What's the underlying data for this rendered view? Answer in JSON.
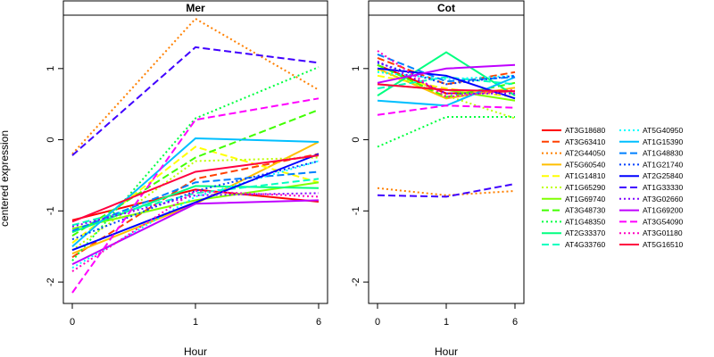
{
  "chart_data": {
    "type": "line",
    "ylabel": "centered expression",
    "x": [
      0,
      1,
      6
    ],
    "x_tick_labels": [
      "0",
      "1",
      "6"
    ],
    "ylim": [
      -2.3,
      1.75
    ],
    "y_ticks": [
      -2,
      -1,
      0,
      1
    ],
    "y_tick_labels": [
      "-2",
      "-1",
      "0",
      "1"
    ],
    "series": [
      {
        "name": "AT3G18680",
        "color": "#ff0000",
        "dash": "solid"
      },
      {
        "name": "AT3G63410",
        "color": "#ff4000",
        "dash": "dashed"
      },
      {
        "name": "AT2G44050",
        "color": "#ff8000",
        "dash": "dotted"
      },
      {
        "name": "AT5G60540",
        "color": "#ffbf00",
        "dash": "solid"
      },
      {
        "name": "AT1G14810",
        "color": "#ffff00",
        "dash": "dashed"
      },
      {
        "name": "AT1G65290",
        "color": "#bfff00",
        "dash": "dotted"
      },
      {
        "name": "AT1G69740",
        "color": "#80ff00",
        "dash": "solid"
      },
      {
        "name": "AT3G48730",
        "color": "#40ff00",
        "dash": "dashed"
      },
      {
        "name": "AT1G48350",
        "color": "#00ff40",
        "dash": "dotted"
      },
      {
        "name": "AT2G33370",
        "color": "#00ff80",
        "dash": "solid"
      },
      {
        "name": "AT4G33760",
        "color": "#00ffbf",
        "dash": "dashed"
      },
      {
        "name": "AT5G40950",
        "color": "#00ffff",
        "dash": "dotted"
      },
      {
        "name": "AT1G15390",
        "color": "#00bfff",
        "dash": "solid"
      },
      {
        "name": "AT1G48830",
        "color": "#0080ff",
        "dash": "dashed"
      },
      {
        "name": "AT1G21740",
        "color": "#0040ff",
        "dash": "dotted"
      },
      {
        "name": "AT2G25840",
        "color": "#0000ff",
        "dash": "solid"
      },
      {
        "name": "AT1G33330",
        "color": "#4000ff",
        "dash": "dashed"
      },
      {
        "name": "AT3G02660",
        "color": "#8000ff",
        "dash": "dotted"
      },
      {
        "name": "AT1G69200",
        "color": "#bf00ff",
        "dash": "solid"
      },
      {
        "name": "AT3G54090",
        "color": "#ff00ff",
        "dash": "dashed"
      },
      {
        "name": "AT3G01180",
        "color": "#ff00bf",
        "dash": "dotted"
      },
      {
        "name": "AT5G16510",
        "color": "#ff0040",
        "dash": "solid"
      }
    ],
    "panels": [
      {
        "title": "Mer",
        "xlabel": "Hour",
        "series_values": [
          [
            -1.13,
            -0.7,
            -0.87
          ],
          [
            -1.65,
            -0.55,
            -0.2
          ],
          [
            -0.2,
            1.7,
            0.7
          ],
          [
            -1.6,
            -0.9,
            -0.03
          ],
          [
            -1.45,
            -0.1,
            -0.6
          ],
          [
            -1.55,
            -0.3,
            -0.25
          ],
          [
            -1.25,
            -0.85,
            -0.6
          ],
          [
            -1.35,
            -0.25,
            0.42
          ],
          [
            -1.7,
            0.3,
            1.02
          ],
          [
            -1.3,
            -0.65,
            -0.68
          ],
          [
            -1.2,
            -0.75,
            -0.55
          ],
          [
            -1.8,
            -0.8,
            -0.3
          ],
          [
            -1.5,
            0.02,
            -0.03
          ],
          [
            -1.28,
            -0.6,
            -0.45
          ],
          [
            -1.4,
            -0.72,
            -0.3
          ],
          [
            -1.55,
            -0.88,
            -0.2
          ],
          [
            -0.22,
            1.3,
            1.08
          ],
          [
            -1.22,
            -0.78,
            -0.75
          ],
          [
            -1.75,
            -0.9,
            -0.85
          ],
          [
            -2.15,
            0.28,
            0.58
          ],
          [
            -1.85,
            -0.72,
            -0.8
          ],
          [
            -1.15,
            -0.45,
            -0.22
          ]
        ]
      },
      {
        "title": "Cot",
        "xlabel": "Hour",
        "series_values": [
          [
            1.05,
            0.65,
            0.68
          ],
          [
            1.15,
            0.78,
            0.95
          ],
          [
            -0.68,
            -0.78,
            -0.72
          ],
          [
            1.0,
            0.58,
            0.73
          ],
          [
            0.9,
            0.72,
            0.6
          ],
          [
            0.98,
            0.62,
            0.3
          ],
          [
            0.78,
            0.7,
            0.55
          ],
          [
            1.05,
            0.6,
            0.8
          ],
          [
            -0.1,
            0.32,
            0.32
          ],
          [
            0.62,
            1.23,
            0.62
          ],
          [
            0.72,
            0.88,
            0.78
          ],
          [
            0.95,
            0.85,
            0.9
          ],
          [
            0.55,
            0.48,
            0.88
          ],
          [
            1.2,
            0.82,
            0.88
          ],
          [
            1.08,
            0.78,
            0.9
          ],
          [
            1.0,
            0.9,
            0.58
          ],
          [
            -0.78,
            -0.8,
            -0.62
          ],
          [
            1.1,
            0.65,
            0.65
          ],
          [
            0.8,
            1.0,
            1.05
          ],
          [
            0.35,
            0.48,
            0.45
          ],
          [
            1.25,
            0.6,
            0.7
          ],
          [
            0.78,
            0.7,
            0.68
          ]
        ]
      }
    ],
    "legend_position": "right"
  }
}
